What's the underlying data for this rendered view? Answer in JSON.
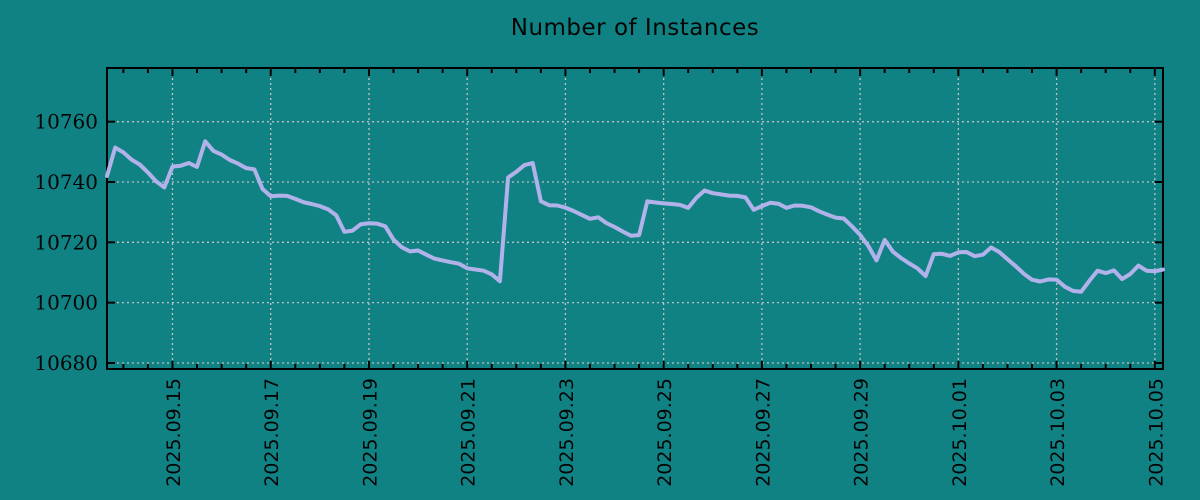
{
  "chart_data": {
    "type": "line",
    "title": "Number of Instances",
    "legend": "none",
    "grid": true,
    "colors": {
      "background": "#118284",
      "line": "#b2b2ea",
      "grid": "#bdc3c3",
      "axis": "#000000",
      "text": "#050505"
    },
    "x_axis": {
      "tick_labels": [
        "2025.09.15",
        "2025.09.17",
        "2025.09.19",
        "2025.09.21",
        "2025.09.23",
        "2025.09.25",
        "2025.09.27",
        "2025.09.29",
        "2025.10.01",
        "2025.10.03",
        "2025.10.05"
      ],
      "tick_label_rotation_deg": 90,
      "first_tick_index": 8,
      "tick_every_points": 12,
      "minor_tick_every_points": 3,
      "minor_tick_offset": 2
    },
    "y_axis": {
      "tick_values": [
        10680,
        10700,
        10720,
        10740,
        10760
      ],
      "tick_labels": [
        "10680",
        "10700",
        "10720",
        "10740",
        "10760"
      ],
      "range": [
        10678.0,
        10777.8
      ]
    },
    "series": [
      {
        "name": "Number of Instances",
        "start": "2025-09-13 16:00",
        "interval_hours": 4,
        "values": [
          10742.0,
          10751.4,
          10749.8,
          10747.4,
          10745.8,
          10743.2,
          10740.2,
          10738.2,
          10745.1,
          10745.4,
          10746.3,
          10745.0,
          10753.5,
          10750.3,
          10749.1,
          10747.3,
          10746.1,
          10744.6,
          10744.2,
          10737.7,
          10735.3,
          10735.5,
          10735.4,
          10734.4,
          10733.3,
          10732.7,
          10732.0,
          10731.0,
          10729.0,
          10723.5,
          10723.9,
          10726.0,
          10726.3,
          10726.2,
          10725.3,
          10720.9,
          10718.4,
          10717.0,
          10717.3,
          10715.9,
          10714.6,
          10714.0,
          10713.4,
          10712.9,
          10711.4,
          10711.0,
          10710.6,
          10709.4,
          10707.1,
          10741.5,
          10743.4,
          10745.6,
          10746.3,
          10733.6,
          10732.3,
          10732.2,
          10731.5,
          10730.4,
          10729.1,
          10727.8,
          10728.3,
          10726.4,
          10725.1,
          10723.6,
          10722.2,
          10722.4,
          10733.6,
          10733.2,
          10732.9,
          10732.7,
          10732.4,
          10731.4,
          10734.8,
          10737.2,
          10736.3,
          10735.9,
          10735.5,
          10735.4,
          10734.9,
          10730.8,
          10732.0,
          10733.1,
          10732.8,
          10731.4,
          10732.2,
          10732.1,
          10731.6,
          10730.3,
          10729.2,
          10728.2,
          10727.9,
          10725.3,
          10722.5,
          10718.8,
          10714.0,
          10720.8,
          10716.9,
          10714.8,
          10713.0,
          10711.4,
          10708.8,
          10716.1,
          10716.2,
          10715.5,
          10716.7,
          10716.8,
          10715.4,
          10715.9,
          10718.3,
          10716.8,
          10714.4,
          10712.1,
          10709.6,
          10707.6,
          10707.0,
          10707.7,
          10707.6,
          10705.3,
          10703.9,
          10703.6,
          10707.2,
          10710.6,
          10709.8,
          10710.7,
          10707.8,
          10709.5,
          10712.3,
          10710.6,
          10710.4,
          10711.0
        ]
      }
    ]
  }
}
